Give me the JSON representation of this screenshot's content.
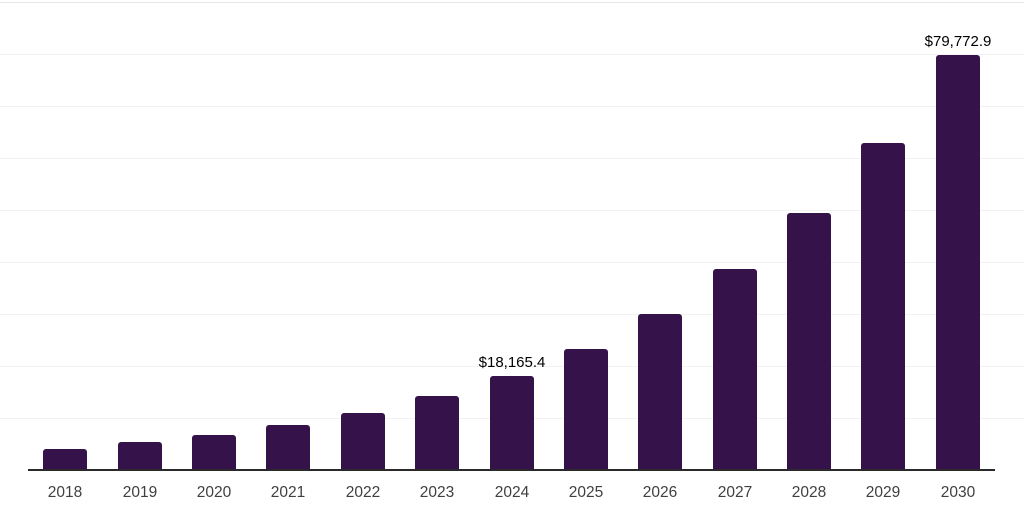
{
  "chart_data": {
    "type": "bar",
    "title": "",
    "xlabel": "",
    "ylabel": "",
    "categories": [
      "2018",
      "2019",
      "2020",
      "2021",
      "2022",
      "2023",
      "2024",
      "2025",
      "2026",
      "2027",
      "2028",
      "2029",
      "2030"
    ],
    "values": [
      4040,
      5380,
      6730,
      8650,
      10960,
      14230,
      18165.4,
      23270,
      30000,
      38650,
      49420,
      62890,
      79772.9
    ],
    "data_labels": [
      null,
      null,
      null,
      null,
      null,
      null,
      "$18,165.4",
      null,
      null,
      null,
      null,
      null,
      "$79,772.9"
    ],
    "ylim": [
      0,
      90000
    ],
    "gridline_step": 10000,
    "grid": "horizontal",
    "legend": "none",
    "y_axis_labels_visible": false
  },
  "colors": {
    "bar": "#36124B",
    "gridline": "#f2f2f2",
    "top_gridline": "#e7e7e7",
    "axis_line": "#2a2a2a",
    "tick_label": "#3f3f3f",
    "data_label": "#000000",
    "background": "#ffffff"
  }
}
